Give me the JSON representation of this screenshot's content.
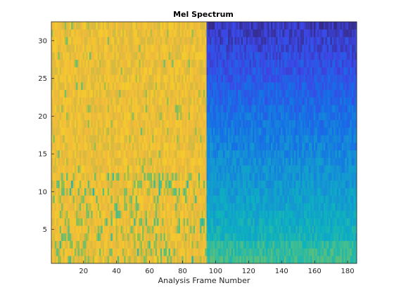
{
  "chart_data": {
    "type": "heatmap",
    "title": "Mel Spectrum",
    "xlabel": "Analysis Frame Number",
    "ylabel": "",
    "xlim": [
      0.5,
      185.5
    ],
    "ylim": [
      0.5,
      32.5
    ],
    "x_ticks": [
      20,
      40,
      60,
      80,
      100,
      120,
      140,
      160,
      180
    ],
    "y_ticks": [
      5,
      10,
      15,
      20,
      25,
      30
    ],
    "n_frames": 185,
    "n_bands": 32,
    "boundary_frame": 95,
    "colormap": "parula",
    "regions": [
      {
        "frames": [
          1,
          94
        ],
        "level": "high",
        "dominant_color": "#e2b935",
        "note_color": "#b7c030"
      },
      {
        "frames": [
          95,
          185
        ],
        "level": "low",
        "top_color": "#3d3fd9",
        "bottom_color": "#1fb0c8"
      }
    ],
    "grid": false,
    "colorbar": false
  }
}
